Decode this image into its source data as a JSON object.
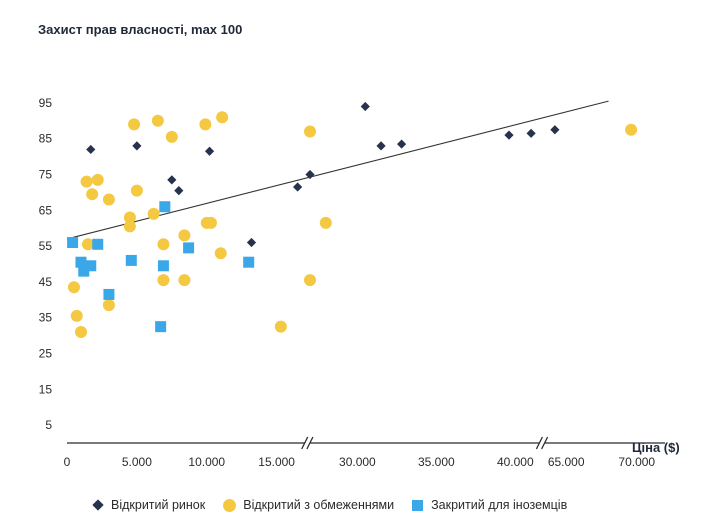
{
  "chart_data": {
    "type": "scatter",
    "title": "Захист прав власності, max 100",
    "xlabel": "Ціна ($)",
    "ylabel": "",
    "ylim": [
      0,
      100
    ],
    "y_ticks": [
      "5",
      "15",
      "25",
      "35",
      "45",
      "55",
      "65",
      "75",
      "85",
      "95"
    ],
    "y_tick_values": [
      5,
      15,
      25,
      35,
      45,
      55,
      65,
      75,
      85,
      95
    ],
    "x_ticks": [
      "0",
      "5.000",
      "10.000",
      "15.000",
      "30.000",
      "35.000",
      "40.000",
      "65.000",
      "70.000"
    ],
    "x_tick_values": [
      0,
      5000,
      10000,
      15000,
      30000,
      35000,
      40000,
      65000,
      70000
    ],
    "x_axis_breaks": [
      {
        "from": 17000,
        "to": 27000
      },
      {
        "from": 41500,
        "to": 63500
      }
    ],
    "grid": false,
    "legend_position": "bottom",
    "series": [
      {
        "name": "Відкритий ринок",
        "marker": "diamond",
        "color": "#27334d",
        "points": [
          [
            1700,
            82
          ],
          [
            5000,
            83
          ],
          [
            7500,
            73.5
          ],
          [
            8000,
            70.5
          ],
          [
            10200,
            81.5
          ],
          [
            13200,
            56
          ],
          [
            16500,
            71.5
          ],
          [
            18500,
            75
          ],
          [
            30500,
            94
          ],
          [
            31500,
            83
          ],
          [
            32800,
            83.5
          ],
          [
            39600,
            86
          ],
          [
            41000,
            86.5
          ],
          [
            64200,
            87.5
          ]
        ]
      },
      {
        "name": "Відкритий з обмеженнями",
        "marker": "circle",
        "color": "#f5c842",
        "points": [
          [
            500,
            43.5
          ],
          [
            700,
            35.5
          ],
          [
            1000,
            31
          ],
          [
            1400,
            73
          ],
          [
            1500,
            55.5
          ],
          [
            1800,
            69.5
          ],
          [
            2200,
            73.5
          ],
          [
            3000,
            68
          ],
          [
            3000,
            38.5
          ],
          [
            4500,
            63
          ],
          [
            4500,
            60.5
          ],
          [
            4800,
            89
          ],
          [
            5000,
            70.5
          ],
          [
            6200,
            64
          ],
          [
            6500,
            90
          ],
          [
            6900,
            55.5
          ],
          [
            6900,
            45.5
          ],
          [
            7500,
            85.5
          ],
          [
            8400,
            58
          ],
          [
            8400,
            45.5
          ],
          [
            9900,
            89
          ],
          [
            10000,
            61.5
          ],
          [
            10300,
            61.5
          ],
          [
            11000,
            53
          ],
          [
            11100,
            91
          ],
          [
            15300,
            32.5
          ],
          [
            17200,
            45.5
          ],
          [
            19400,
            87
          ],
          [
            28000,
            61.5
          ],
          [
            69600,
            87.5
          ]
        ]
      },
      {
        "name": "Закритий для іноземців",
        "marker": "square",
        "color": "#3aa8e8",
        "points": [
          [
            400,
            56
          ],
          [
            1000,
            50.5
          ],
          [
            1200,
            48
          ],
          [
            1700,
            49.5
          ],
          [
            2200,
            55.5
          ],
          [
            3000,
            41.5
          ],
          [
            4600,
            51
          ],
          [
            6700,
            32.5
          ],
          [
            6900,
            49.5
          ],
          [
            7000,
            66
          ],
          [
            8700,
            54.5
          ],
          [
            13000,
            50.5
          ]
        ]
      }
    ],
    "trendline": {
      "from": [
        0,
        57
      ],
      "to": [
        68000,
        95.5
      ],
      "color": "#333333"
    }
  }
}
